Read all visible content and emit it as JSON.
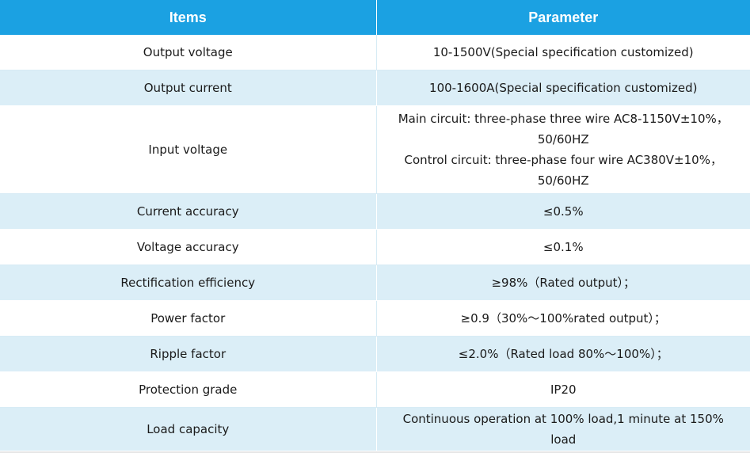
{
  "table": {
    "headers": [
      "Items",
      "Parameter"
    ],
    "rows": [
      {
        "item": "Output voltage",
        "param": [
          "10-1500V(Special specification customized)"
        ]
      },
      {
        "item": "Output current",
        "param": [
          "100-1600A(Special specification customized)"
        ]
      },
      {
        "item": "Input voltage",
        "param": [
          "Main circuit: three-phase three wire AC8-1150V±10%，",
          "50/60HZ",
          "Control circuit: three-phase four wire AC380V±10%，",
          "50/60HZ"
        ]
      },
      {
        "item": "Current accuracy",
        "param": [
          "≤0.5%"
        ]
      },
      {
        "item": "Voltage accuracy",
        "param": [
          "≤0.1%"
        ]
      },
      {
        "item": "Rectification efficiency",
        "param": [
          "≥98%（Rated output）；"
        ]
      },
      {
        "item": "Power factor",
        "param": [
          "≥0.9（30%～100%rated output）；"
        ]
      },
      {
        "item": "Ripple factor",
        "param": [
          "≤2.0%（Rated load 80%～100%）；"
        ]
      },
      {
        "item": "Protection grade",
        "param": [
          "IP20"
        ]
      },
      {
        "item": "Load capacity",
        "param": [
          "Continuous operation at 100% load,1 minute at 150%",
          "load"
        ]
      }
    ]
  }
}
